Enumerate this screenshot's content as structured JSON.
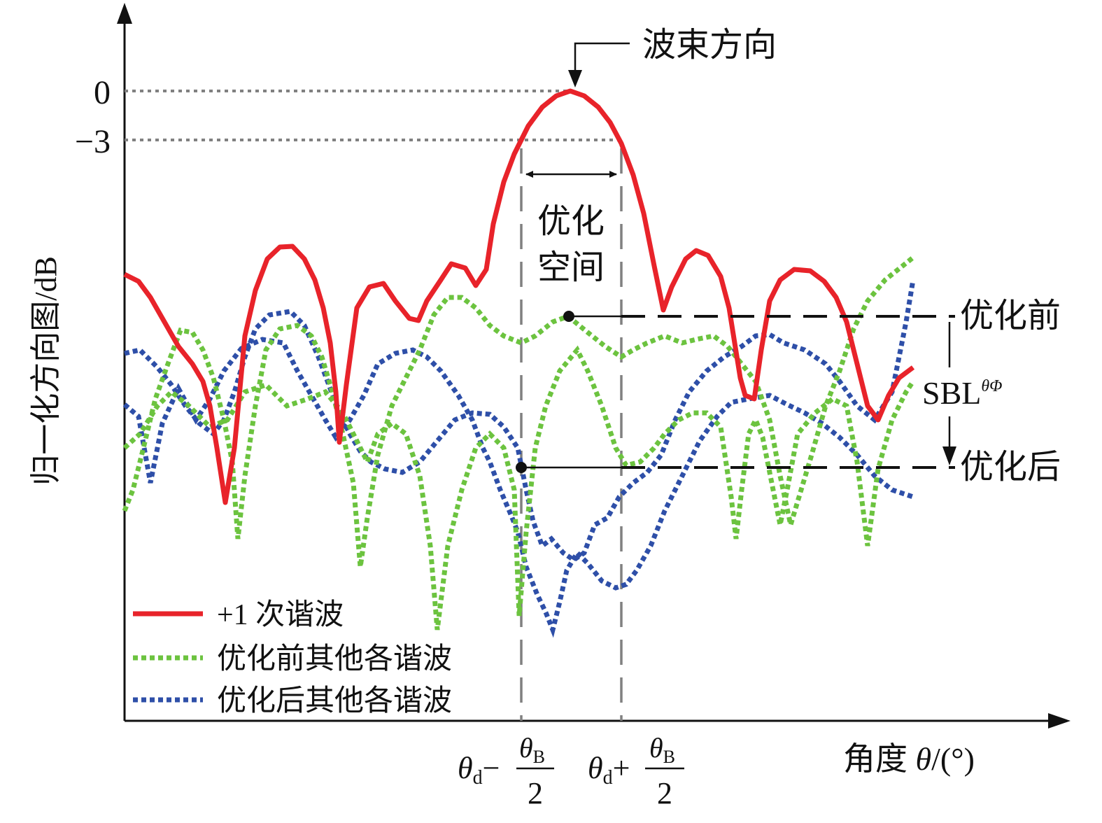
{
  "chart_data": {
    "type": "line",
    "title": "",
    "xlabel_name": "角度",
    "xlabel_symbol": "θ",
    "xlabel_unit": "/(°)",
    "ylabel": "归一化方向图/dB",
    "y_ticks": [
      "0",
      "−3"
    ],
    "x_ticks": {
      "left": {
        "theta": "θ",
        "sub_d": "d",
        "op": "−",
        "num_theta": "θ",
        "num_sub": "B",
        "den": "2"
      },
      "right": {
        "theta": "θ",
        "sub_d": "d",
        "op": "+",
        "num_theta": "θ",
        "num_sub": "B",
        "den": "2"
      }
    },
    "annotations": {
      "beam_direction": "波束方向",
      "optimization_space_1": "优化",
      "optimization_space_2": "空间",
      "before_optimization": "优化前",
      "after_optimization": "优化后",
      "sbl_main": "SBL",
      "sbl_sup": "θΦ"
    },
    "legend": {
      "placement": "bottom-left",
      "entries": [
        {
          "label": "+1 次谐波",
          "color": "#e8232a",
          "style": "solid"
        },
        {
          "label": "优化前其他各谐波",
          "color": "#6cc33f",
          "style": "dotted"
        },
        {
          "label": "优化后其他各谐波",
          "color": "#2e4fa8",
          "style": "dotted"
        }
      ]
    },
    "grid": false,
    "main_beam_peak_db": 0,
    "half_power_level_db": -3
  }
}
